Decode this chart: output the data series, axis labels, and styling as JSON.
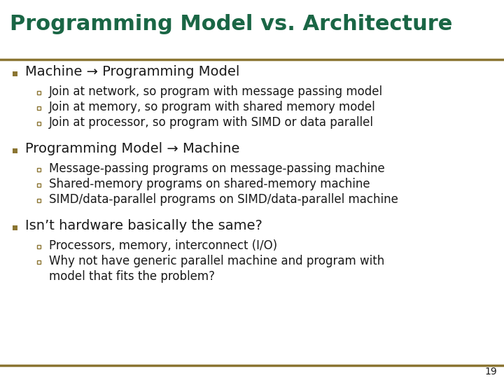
{
  "title": "Programming Model vs. Architecture",
  "title_color": "#1a6645",
  "title_fontsize": 22,
  "bg_color": "#ffffff",
  "separator_color": "#8B7532",
  "bullet_color": "#8B7532",
  "text_color": "#1a1a1a",
  "page_number": "19",
  "bullet_main_fontsize": 14,
  "bullet_sub_fontsize": 12,
  "bullets": [
    {
      "text": "Machine → Programming Model",
      "sub": [
        "Join at network, so program with message passing model",
        "Join at memory, so program with shared memory model",
        "Join at processor, so program with SIMD or data parallel"
      ]
    },
    {
      "text": "Programming Model → Machine",
      "sub": [
        "Message-passing programs on message-passing machine",
        "Shared-memory programs on shared-memory machine",
        "SIMD/data-parallel programs on SIMD/data-parallel machine"
      ]
    },
    {
      "text": "Isn’t hardware basically the same?",
      "sub": [
        "Processors, memory, interconnect (I/O)",
        "Why not have generic parallel machine and program with\nmodel that fits the problem?"
      ]
    }
  ]
}
